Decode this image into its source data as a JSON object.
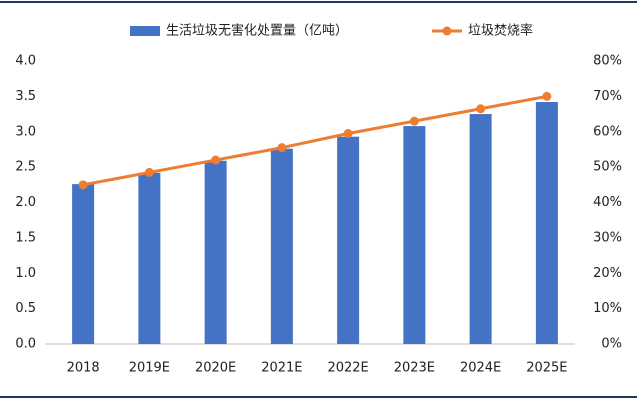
{
  "chart_data": {
    "type": "bar-line",
    "categories": [
      "2018",
      "2019E",
      "2020E",
      "2021E",
      "2022E",
      "2023E",
      "2024E",
      "2025E"
    ],
    "series": [
      {
        "name": "生活垃圾无害化处置量（亿吨）",
        "color": "#4472c4",
        "type": "bar",
        "values": [
          2.26,
          2.42,
          2.59,
          2.76,
          2.93,
          3.08,
          3.25,
          3.42
        ]
      },
      {
        "name": "垃圾焚烧率",
        "color": "#ed7d31",
        "type": "line",
        "axis": "y2",
        "values": [
          45,
          48.5,
          52,
          55.5,
          59.5,
          63,
          66.5,
          70
        ]
      }
    ],
    "ylim": [
      0,
      4
    ],
    "yticks": [
      {
        "value": 0,
        "label": "0.0"
      },
      {
        "value": 0.5,
        "label": "0.5"
      },
      {
        "value": 1,
        "label": "1.0"
      },
      {
        "value": 1.5,
        "label": "1.5"
      },
      {
        "value": 2,
        "label": "2.0"
      },
      {
        "value": 2.5,
        "label": "2.5"
      },
      {
        "value": 3,
        "label": "3.0"
      },
      {
        "value": 3.5,
        "label": "3.5"
      },
      {
        "value": 4,
        "label": "4.0"
      }
    ],
    "y2lim": [
      0,
      80
    ],
    "y2ticks": [
      {
        "value": 0,
        "label": "0%"
      },
      {
        "value": 10,
        "label": "10%"
      },
      {
        "value": 20,
        "label": "20%"
      },
      {
        "value": 30,
        "label": "30%"
      },
      {
        "value": 40,
        "label": "40%"
      },
      {
        "value": 50,
        "label": "50%"
      },
      {
        "value": 60,
        "label": "60%"
      },
      {
        "value": 70,
        "label": "70%"
      },
      {
        "value": 80,
        "label": "80%"
      }
    ],
    "grid": false
  }
}
